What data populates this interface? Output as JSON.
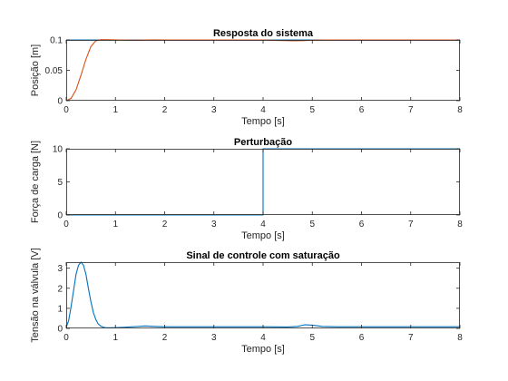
{
  "chart_data": [
    {
      "type": "line",
      "title": "Resposta do sistema",
      "xlabel": "Tempo [s]",
      "ylabel": "Posição [m]",
      "xlim": [
        0,
        8
      ],
      "ylim": [
        0,
        0.1
      ],
      "xticks": [
        0,
        1,
        2,
        3,
        4,
        5,
        6,
        7,
        8
      ],
      "xtick_labels": [
        "0",
        "1",
        "2",
        "3",
        "4",
        "5",
        "6",
        "7",
        "8"
      ],
      "yticks": [
        0,
        0.05,
        0.1
      ],
      "ytick_labels": [
        "0",
        "0.05",
        "0.1"
      ],
      "grid": false,
      "series": [
        {
          "color": "#0072bd",
          "x": [
            0,
            8
          ],
          "y": [
            0.1,
            0.1
          ]
        },
        {
          "color": "#d95319",
          "x": [
            0,
            0.1,
            0.2,
            0.3,
            0.4,
            0.5,
            0.6,
            0.7,
            0.8,
            1.0,
            1.2,
            1.4,
            1.6,
            1.8,
            2.0,
            3.0,
            4.0,
            4.3,
            4.6,
            4.8,
            5.0,
            5.3,
            6.0,
            7.0,
            8.0
          ],
          "y": [
            0,
            0.004,
            0.018,
            0.042,
            0.068,
            0.089,
            0.0985,
            0.1005,
            0.1005,
            0.1002,
            0.0998,
            0.0996,
            0.0999,
            0.1001,
            0.1,
            0.1,
            0.1,
            0.0992,
            0.0985,
            0.0987,
            0.0995,
            0.1,
            0.1,
            0.1,
            0.1
          ]
        }
      ]
    },
    {
      "type": "line",
      "title": "Perturbação",
      "xlabel": "Tempo [s]",
      "ylabel": "Força de carga [N]",
      "xlim": [
        0,
        8
      ],
      "ylim": [
        0,
        10
      ],
      "xticks": [
        0,
        1,
        2,
        3,
        4,
        5,
        6,
        7,
        8
      ],
      "xtick_labels": [
        "0",
        "1",
        "2",
        "3",
        "4",
        "5",
        "6",
        "7",
        "8"
      ],
      "yticks": [
        0,
        5,
        10
      ],
      "ytick_labels": [
        "0",
        "5",
        "10"
      ],
      "grid": false,
      "series": [
        {
          "color": "#0072bd",
          "x": [
            0,
            4,
            4,
            8
          ],
          "y": [
            0,
            0,
            10,
            10
          ]
        }
      ]
    },
    {
      "type": "line",
      "title": "Sinal de controle com saturação",
      "xlabel": "Tempo [s]",
      "ylabel": "Tensão na válvula [V]",
      "xlim": [
        0,
        8
      ],
      "ylim": [
        0,
        3.3
      ],
      "xticks": [
        0,
        1,
        2,
        3,
        4,
        5,
        6,
        7,
        8
      ],
      "xtick_labels": [
        "0",
        "1",
        "2",
        "3",
        "4",
        "5",
        "6",
        "7",
        "8"
      ],
      "yticks": [
        0,
        1,
        2,
        3
      ],
      "ytick_labels": [
        "0",
        "1",
        "2",
        "3"
      ],
      "grid": false,
      "series": [
        {
          "color": "#0072bd",
          "x": [
            0,
            0.05,
            0.1,
            0.15,
            0.2,
            0.25,
            0.3,
            0.35,
            0.4,
            0.45,
            0.5,
            0.55,
            0.6,
            0.65,
            0.7,
            0.75,
            0.8,
            0.9,
            1.0,
            1.2,
            1.4,
            1.6,
            1.8,
            2.0,
            3.0,
            4.0,
            4.5,
            4.7,
            4.85,
            5.0,
            5.2,
            5.5,
            6.0,
            7.0,
            8.0
          ],
          "y": [
            0.05,
            0.4,
            1.1,
            1.9,
            2.7,
            3.15,
            3.3,
            3.15,
            2.7,
            2.0,
            1.35,
            0.8,
            0.45,
            0.22,
            0.12,
            0.06,
            0.04,
            0.03,
            0.04,
            0.06,
            0.09,
            0.12,
            0.1,
            0.08,
            0.08,
            0.08,
            0.07,
            0.1,
            0.18,
            0.16,
            0.1,
            0.08,
            0.08,
            0.08,
            0.08
          ]
        }
      ]
    }
  ]
}
